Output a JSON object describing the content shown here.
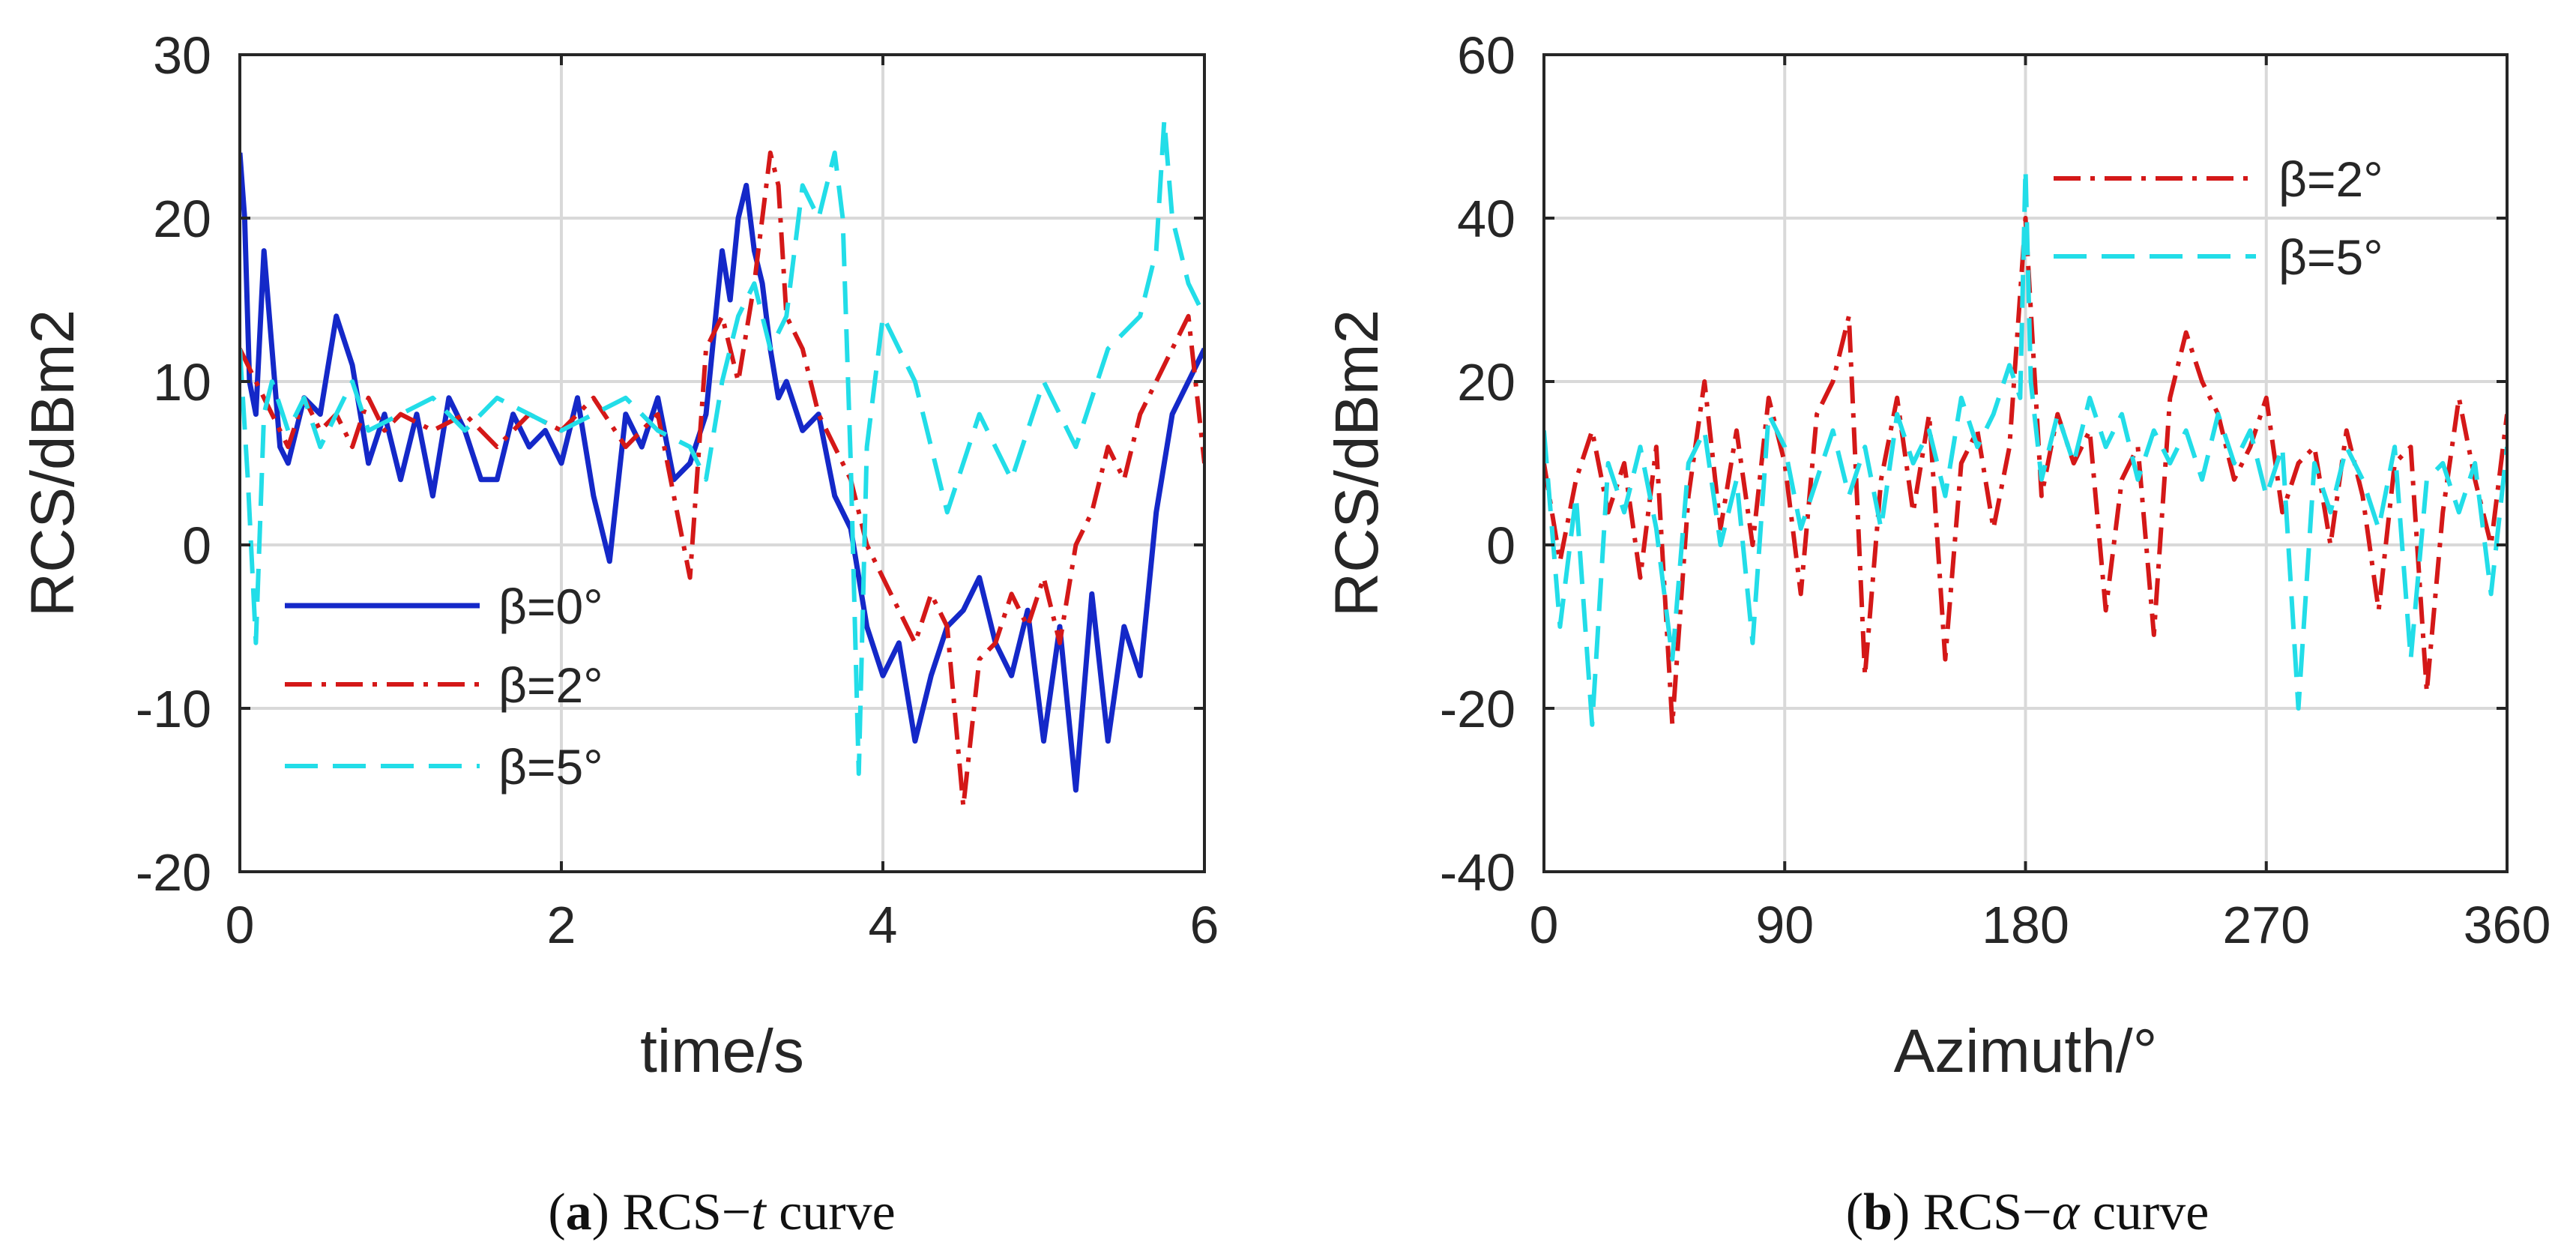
{
  "colors": {
    "beta0": "#1428c8",
    "beta2": "#d41818",
    "beta5": "#22dde8",
    "grid": "#d9d9d9",
    "axis": "#262626"
  },
  "chart_data": [
    {
      "type": "line",
      "caption": {
        "label": "a",
        "text": "RCS−",
        "var": "t",
        "rest": " curve"
      },
      "xlabel": "time/s",
      "ylabel": "RCS/dBm2",
      "xlim": [
        0,
        6
      ],
      "ylim": [
        -20,
        30
      ],
      "xticks": [
        0,
        2,
        4,
        6
      ],
      "xtick_labels": [
        "0",
        "2",
        "4",
        "6"
      ],
      "yticks": [
        -20,
        -10,
        0,
        10,
        20,
        30
      ],
      "ytick_labels": [
        "-20",
        "-10",
        "0",
        "10",
        "20",
        "30"
      ],
      "grid": true,
      "legend_position": "bottom-left",
      "series": [
        {
          "name": "β=0°",
          "color_key": "beta0",
          "dash": "solid",
          "x": [
            0,
            0.03,
            0.06,
            0.1,
            0.15,
            0.2,
            0.25,
            0.3,
            0.35,
            0.4,
            0.5,
            0.6,
            0.7,
            0.8,
            0.9,
            1.0,
            1.1,
            1.2,
            1.3,
            1.4,
            1.5,
            1.6,
            1.7,
            1.8,
            1.9,
            2.0,
            2.1,
            2.2,
            2.3,
            2.4,
            2.5,
            2.6,
            2.7,
            2.8,
            2.9,
            3.0,
            3.05,
            3.1,
            3.15,
            3.2,
            3.25,
            3.3,
            3.35,
            3.4,
            3.5,
            3.6,
            3.7,
            3.8,
            3.9,
            4.0,
            4.1,
            4.2,
            4.3,
            4.4,
            4.5,
            4.6,
            4.7,
            4.8,
            4.9,
            5.0,
            5.1,
            5.2,
            5.3,
            5.4,
            5.5,
            5.6,
            5.7,
            5.8,
            5.9,
            6.0
          ],
          "y": [
            24,
            20,
            10,
            8,
            18,
            12,
            6,
            5,
            7,
            9,
            8,
            14,
            11,
            5,
            8,
            4,
            8,
            3,
            9,
            7,
            4,
            4,
            8,
            6,
            7,
            5,
            9,
            3,
            -1,
            8,
            6,
            9,
            4,
            5,
            8,
            18,
            15,
            20,
            22,
            18,
            16,
            12,
            9,
            10,
            7,
            8,
            3,
            1,
            -5,
            -8,
            -6,
            -12,
            -8,
            -5,
            -4,
            -2,
            -6,
            -8,
            -4,
            -12,
            -5,
            -15,
            -3,
            -12,
            -5,
            -8,
            2,
            8,
            10,
            12
          ],
          "note": "approximate trace"
        },
        {
          "name": "β=2°",
          "color_key": "beta2",
          "dash": "dashdot",
          "x": [
            0,
            0.1,
            0.2,
            0.3,
            0.4,
            0.5,
            0.6,
            0.7,
            0.8,
            0.9,
            1.0,
            1.2,
            1.4,
            1.6,
            1.8,
            2.0,
            2.2,
            2.4,
            2.6,
            2.7,
            2.8,
            2.9,
            3.0,
            3.1,
            3.2,
            3.3,
            3.35,
            3.4,
            3.5,
            3.6,
            3.7,
            3.8,
            3.9,
            4.0,
            4.1,
            4.2,
            4.3,
            4.4,
            4.5,
            4.6,
            4.7,
            4.8,
            4.9,
            5.0,
            5.1,
            5.2,
            5.3,
            5.4,
            5.5,
            5.6,
            5.7,
            5.8,
            5.9,
            6.0
          ],
          "y": [
            12,
            10,
            8,
            6,
            9,
            7,
            8,
            6,
            9,
            7,
            8,
            7,
            8,
            6,
            8,
            7,
            9,
            6,
            8,
            3,
            -2,
            12,
            14,
            10,
            16,
            24,
            22,
            14,
            12,
            8,
            6,
            4,
            0,
            -2,
            -4,
            -6,
            -3,
            -5,
            -16,
            -7,
            -6,
            -3,
            -5,
            -2,
            -6,
            0,
            2,
            6,
            4,
            8,
            10,
            12,
            14,
            5
          ],
          "note": "approximate trace"
        },
        {
          "name": "β=5°",
          "color_key": "beta5",
          "dash": "dashed",
          "x": [
            0,
            0.05,
            0.1,
            0.15,
            0.2,
            0.3,
            0.4,
            0.5,
            0.6,
            0.7,
            0.8,
            1.0,
            1.2,
            1.4,
            1.6,
            1.8,
            2.0,
            2.2,
            2.4,
            2.6,
            2.8,
            2.9,
            3.0,
            3.1,
            3.2,
            3.3,
            3.4,
            3.5,
            3.6,
            3.7,
            3.75,
            3.8,
            3.85,
            3.9,
            4.0,
            4.2,
            4.4,
            4.6,
            4.8,
            5.0,
            5.2,
            5.4,
            5.6,
            5.7,
            5.75,
            5.8,
            5.9,
            6.0
          ],
          "y": [
            12,
            4,
            -6,
            8,
            10,
            7,
            9,
            6,
            8,
            10,
            7,
            8,
            9,
            7,
            9,
            8,
            7,
            8,
            9,
            7,
            6,
            4,
            10,
            14,
            16,
            12,
            14,
            22,
            20,
            24,
            20,
            5,
            -14,
            6,
            14,
            10,
            2,
            8,
            4,
            10,
            6,
            12,
            14,
            18,
            26,
            20,
            16,
            14
          ],
          "note": "approximate trace"
        }
      ]
    },
    {
      "type": "line",
      "caption": {
        "label": "b",
        "text": "RCS−",
        "var": "α",
        "rest": " curve"
      },
      "xlabel": "Azimuth/°",
      "ylabel": "RCS/dBm2",
      "xlim": [
        0,
        360
      ],
      "ylim": [
        -40,
        60
      ],
      "xticks": [
        0,
        90,
        180,
        270,
        360
      ],
      "xtick_labels": [
        "0",
        "90",
        "180",
        "270",
        "360"
      ],
      "yticks": [
        -40,
        -20,
        0,
        20,
        40,
        60
      ],
      "ytick_labels": [
        "-40",
        "-20",
        "0",
        "20",
        "40",
        "60"
      ],
      "grid": true,
      "legend_position": "top-right",
      "series": [
        {
          "name": "β=2°",
          "color_key": "beta2",
          "dash": "dashdot",
          "x": [
            0,
            6,
            12,
            18,
            24,
            30,
            36,
            42,
            48,
            54,
            60,
            66,
            72,
            78,
            84,
            90,
            96,
            102,
            108,
            114,
            120,
            126,
            132,
            138,
            144,
            150,
            156,
            162,
            168,
            174,
            180,
            186,
            192,
            198,
            204,
            210,
            216,
            222,
            228,
            234,
            240,
            246,
            252,
            258,
            264,
            270,
            276,
            282,
            288,
            294,
            300,
            306,
            312,
            318,
            324,
            330,
            336,
            342,
            348,
            354,
            360
          ],
          "y": [
            10,
            -2,
            8,
            14,
            4,
            10,
            -4,
            12,
            -22,
            6,
            20,
            2,
            14,
            0,
            18,
            10,
            -6,
            16,
            20,
            28,
            -16,
            8,
            18,
            4,
            16,
            -14,
            10,
            14,
            2,
            12,
            40,
            6,
            16,
            10,
            14,
            -8,
            8,
            12,
            -11,
            18,
            26,
            20,
            16,
            8,
            12,
            18,
            4,
            10,
            12,
            0,
            14,
            6,
            -8,
            10,
            12,
            -18,
            4,
            18,
            8,
            0,
            16
          ],
          "note": "approximate trace"
        },
        {
          "name": "β=5°",
          "color_key": "beta5",
          "dash": "dashed",
          "x": [
            0,
            6,
            12,
            18,
            24,
            30,
            36,
            42,
            48,
            54,
            60,
            66,
            72,
            78,
            84,
            90,
            96,
            102,
            108,
            114,
            120,
            126,
            132,
            138,
            144,
            150,
            156,
            162,
            168,
            174,
            178,
            180,
            182,
            186,
            192,
            198,
            204,
            210,
            216,
            222,
            228,
            234,
            240,
            246,
            252,
            258,
            264,
            270,
            276,
            282,
            288,
            294,
            300,
            306,
            312,
            318,
            324,
            330,
            336,
            342,
            348,
            354,
            360
          ],
          "y": [
            14,
            -10,
            6,
            -22,
            10,
            4,
            12,
            2,
            -14,
            10,
            14,
            0,
            8,
            -12,
            16,
            12,
            2,
            8,
            14,
            6,
            12,
            2,
            16,
            10,
            14,
            6,
            18,
            12,
            16,
            22,
            18,
            46,
            20,
            8,
            16,
            10,
            18,
            12,
            16,
            8,
            14,
            10,
            14,
            8,
            16,
            10,
            14,
            6,
            12,
            -20,
            10,
            4,
            12,
            8,
            2,
            12,
            -14,
            8,
            10,
            4,
            10,
            -6,
            12
          ],
          "note": "approximate trace"
        }
      ]
    }
  ]
}
